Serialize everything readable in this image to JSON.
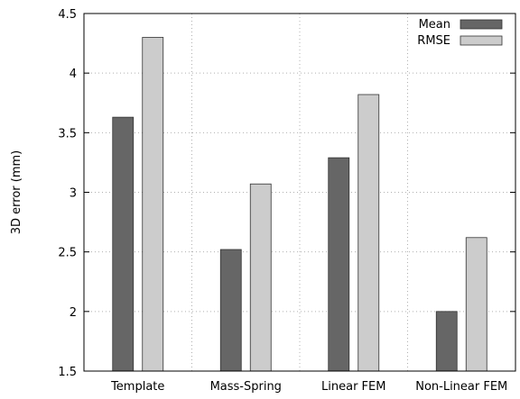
{
  "chart_data": {
    "type": "bar",
    "categories": [
      "Template",
      "Mass-Spring",
      "Linear FEM",
      "Non-Linear FEM"
    ],
    "series": [
      {
        "name": "Mean",
        "values": [
          3.63,
          2.52,
          3.29,
          2.0
        ],
        "color": "#666666"
      },
      {
        "name": "RMSE",
        "values": [
          4.3,
          3.07,
          3.82,
          2.62
        ],
        "color": "#cccccc"
      }
    ],
    "ylabel": "3D error (mm)",
    "ylim": [
      1.5,
      4.5
    ],
    "yticks": [
      "1.5",
      "2",
      "2.5",
      "3",
      "3.5",
      "4",
      "4.5"
    ],
    "grid": true,
    "legend_position": "top-right"
  }
}
